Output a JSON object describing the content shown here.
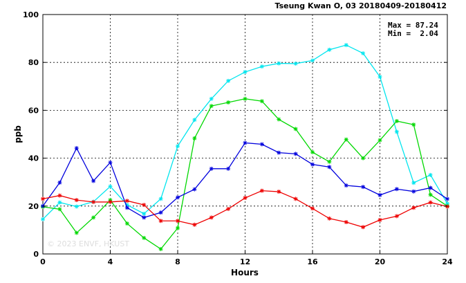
{
  "chart_data": {
    "type": "line",
    "title": "Tseung Kwan O, 03 20180409-20180412",
    "xlabel": "Hours",
    "ylabel": "ppb",
    "xlim": [
      0,
      24
    ],
    "ylim": [
      0,
      100
    ],
    "xticks": [
      "0",
      "4",
      "8",
      "12",
      "16",
      "20",
      "24"
    ],
    "yticks": [
      "0",
      "20",
      "40",
      "60",
      "80",
      "100"
    ],
    "grid": true,
    "stats": {
      "max_label": "Max = 87.24",
      "min_label": "Min =  2.04"
    },
    "watermark": "© 2023  ENVF, HKUST",
    "x": [
      0,
      1,
      2,
      3,
      4,
      5,
      6,
      7,
      8,
      9,
      10,
      11,
      12,
      13,
      14,
      15,
      16,
      17,
      18,
      19,
      20,
      21,
      22,
      23,
      24
    ],
    "series": [
      {
        "color": "#00e5ee",
        "values": [
          14.5,
          21.5,
          19.8,
          21.8,
          28.2,
          20.5,
          16.8,
          23.0,
          45.0,
          56.0,
          64.8,
          72.3,
          76.0,
          78.3,
          79.6,
          79.5,
          80.8,
          85.3,
          87.24,
          83.8,
          74.0,
          51.0,
          29.7,
          33.0,
          21.0
        ]
      },
      {
        "color": "#00d800",
        "values": [
          19.7,
          18.7,
          8.8,
          15.2,
          22.5,
          12.7,
          6.7,
          2.04,
          10.8,
          48.3,
          61.8,
          63.3,
          64.8,
          63.8,
          56.2,
          52.2,
          42.5,
          38.5,
          47.8,
          40.0,
          47.5,
          55.5,
          54.0,
          24.7,
          20.0
        ]
      },
      {
        "color": "#0000dd",
        "values": [
          20.0,
          29.8,
          44.2,
          30.5,
          38.2,
          19.3,
          15.2,
          17.3,
          23.6,
          27.0,
          35.6,
          35.6,
          46.4,
          45.8,
          42.3,
          41.8,
          37.4,
          36.3,
          28.6,
          28.0,
          24.6,
          27.1,
          26.1,
          27.6,
          23.0
        ]
      },
      {
        "color": "#ee0000",
        "values": [
          23.0,
          24.4,
          22.5,
          21.7,
          21.7,
          22.2,
          20.5,
          13.8,
          13.8,
          12.2,
          15.2,
          18.8,
          23.4,
          26.4,
          26.0,
          23.0,
          19.0,
          14.8,
          13.3,
          11.2,
          14.2,
          15.8,
          19.3,
          21.5,
          19.8
        ]
      }
    ]
  }
}
